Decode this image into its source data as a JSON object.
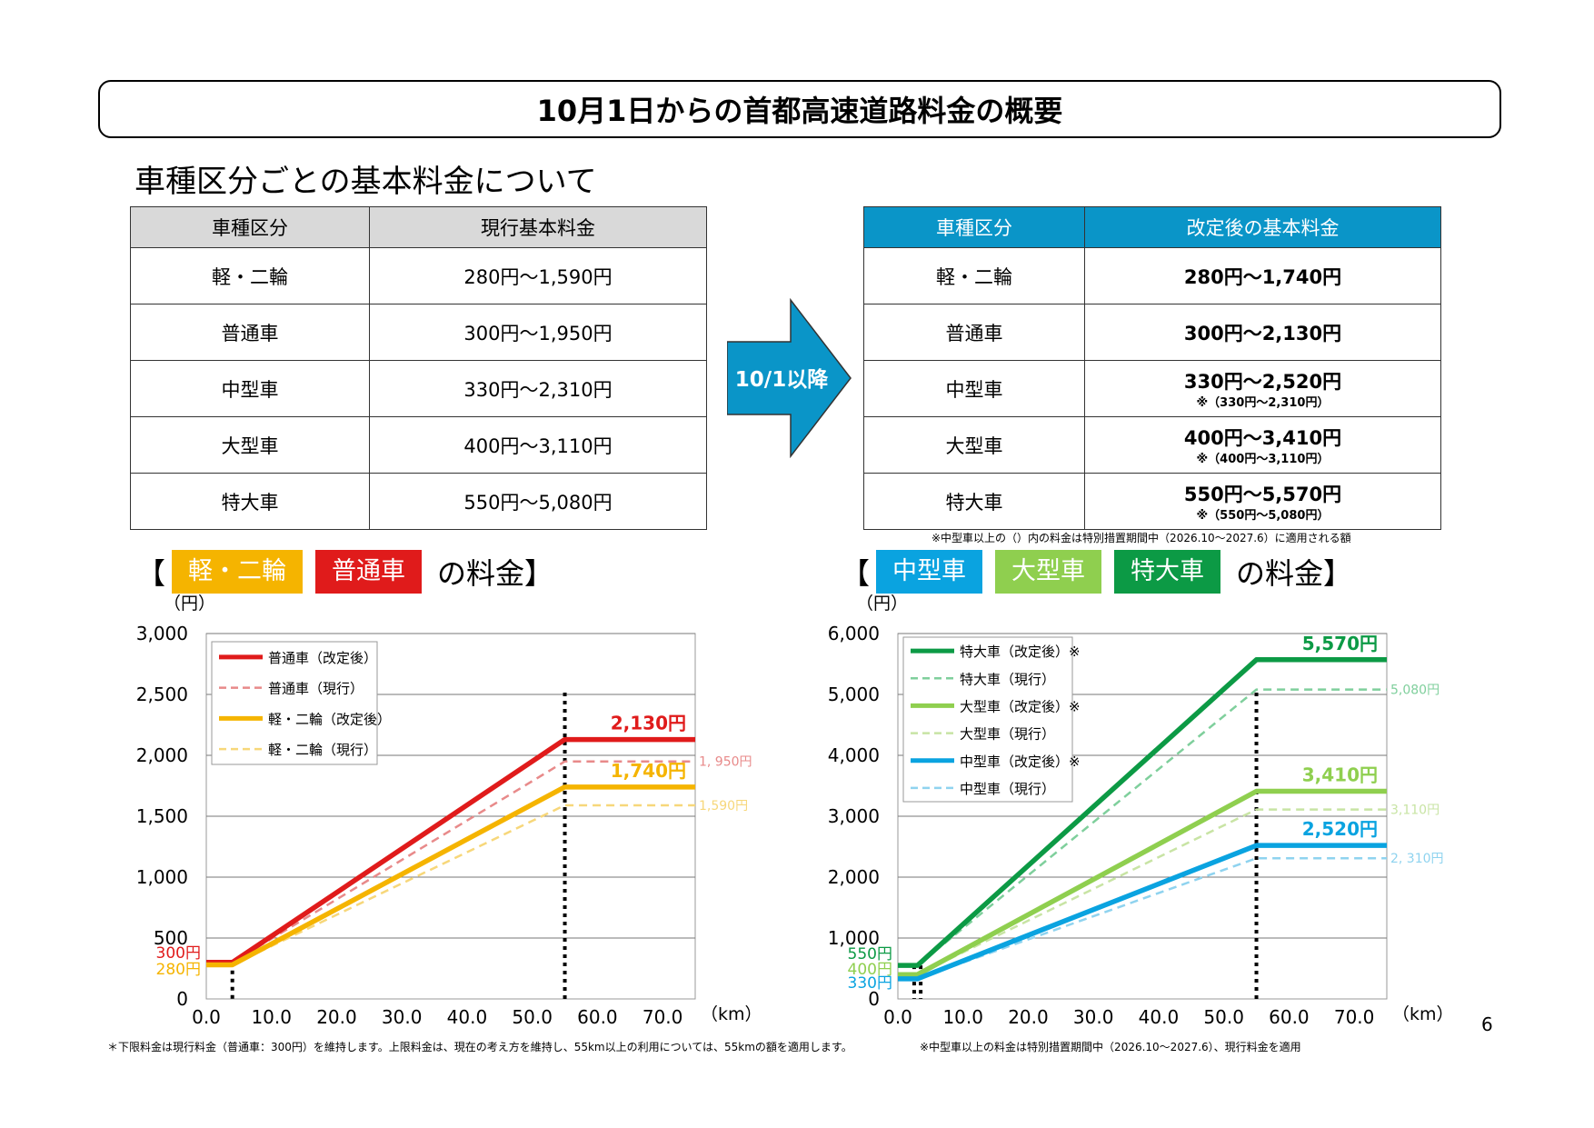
{
  "title": "10月1日からの首都高速道路料金の概要",
  "subtitle": "車種区分ごとの基本料金について",
  "table_current": {
    "headers": [
      "車種区分",
      "現行基本料金"
    ],
    "rows": [
      [
        "軽・二輪",
        "280円～1,590円"
      ],
      [
        "普通車",
        "300円～1,950円"
      ],
      [
        "中型車",
        "330円～2,310円"
      ],
      [
        "大型車",
        "400円～3,110円"
      ],
      [
        "特大車",
        "550円～5,080円"
      ]
    ]
  },
  "arrow_label": "10/1以降",
  "table_revised": {
    "headers": [
      "車種区分",
      "改定後の基本料金"
    ],
    "rows": [
      {
        "type": "軽・二輪",
        "fee": "280円～1,740円",
        "sub": ""
      },
      {
        "type": "普通車",
        "fee": "300円～2,130円",
        "sub": ""
      },
      {
        "type": "中型車",
        "fee": "330円～2,520円",
        "sub": "※（330円～2,310円）"
      },
      {
        "type": "大型車",
        "fee": "400円～3,410円",
        "sub": "※（400円～3,110円）"
      },
      {
        "type": "特大車",
        "fee": "550円～5,570円",
        "sub": "※（550円～5,080円）"
      }
    ],
    "note": "※中型車以上の（）内の料金は特別措置期間中（2026.10～2027.6）に適用される額"
  },
  "legend_left": {
    "open": "【",
    "chips": [
      {
        "label": "軽・二輪",
        "color": "#f5b400"
      },
      {
        "label": "普通車",
        "color": "#e01b1b"
      }
    ],
    "suffix": "の料金】"
  },
  "legend_right": {
    "open": "【",
    "chips": [
      {
        "label": "中型車",
        "color": "#0aa3e0"
      },
      {
        "label": "大型車",
        "color": "#8fcf4f"
      },
      {
        "label": "特大車",
        "color": "#0c9a45"
      }
    ],
    "suffix": "の料金】"
  },
  "chart_data": [
    {
      "type": "line",
      "ylabel": "（円）",
      "xlabel": "（km）",
      "ylim": [
        0,
        3000
      ],
      "xlim": [
        0,
        75
      ],
      "yticks": [
        "0",
        "500",
        "1,000",
        "1,500",
        "2,000",
        "2,500",
        "3,000"
      ],
      "xticks": [
        "0.0",
        "10.0",
        "20.0",
        "30.0",
        "40.0",
        "50.0",
        "60.0",
        "70.0"
      ],
      "grid": true,
      "legend": "top-left",
      "vlines": [
        4,
        55
      ],
      "series": [
        {
          "name": "普通車（改定後）",
          "color": "#e01b1b",
          "dashed": false,
          "x": [
            0,
            4,
            55,
            75
          ],
          "y": [
            300,
            300,
            2130,
            2130
          ],
          "end_label": "2,130円"
        },
        {
          "name": "普通車（現行）",
          "color": "#e88a8a",
          "dashed": true,
          "x": [
            0,
            4,
            55,
            75
          ],
          "y": [
            300,
            300,
            1950,
            1950
          ],
          "end_label": "1, 950円"
        },
        {
          "name": "軽・二輪（改定後）",
          "color": "#f5b400",
          "dashed": false,
          "x": [
            0,
            4,
            55,
            75
          ],
          "y": [
            280,
            280,
            1740,
            1740
          ],
          "end_label": "1,740円"
        },
        {
          "name": "軽・二輪（現行）",
          "color": "#f7d77a",
          "dashed": true,
          "x": [
            0,
            4,
            55,
            75
          ],
          "y": [
            280,
            280,
            1590,
            1590
          ],
          "end_label": "1,590円"
        }
      ],
      "start_labels": [
        {
          "text": "300円",
          "color": "#e01b1b"
        },
        {
          "text": "280円",
          "color": "#f5b400"
        }
      ]
    },
    {
      "type": "line",
      "ylabel": "（円）",
      "xlabel": "（km）",
      "ylim": [
        0,
        6000
      ],
      "xlim": [
        0,
        75
      ],
      "yticks": [
        "0",
        "1,000",
        "2,000",
        "3,000",
        "4,000",
        "5,000",
        "6,000"
      ],
      "xticks": [
        "0.0",
        "10.0",
        "20.0",
        "30.0",
        "40.0",
        "50.0",
        "60.0",
        "70.0"
      ],
      "grid": true,
      "legend": "top-left",
      "vlines": [
        2.5,
        3.5,
        55
      ],
      "series": [
        {
          "name": "特大車（改定後）※",
          "color": "#0c9a45",
          "dashed": false,
          "x": [
            0,
            3,
            55,
            75
          ],
          "y": [
            550,
            550,
            5570,
            5570
          ],
          "end_label": "5,570円"
        },
        {
          "name": "特大車（現行）",
          "color": "#7fcf9c",
          "dashed": true,
          "x": [
            0,
            3,
            55,
            75
          ],
          "y": [
            550,
            550,
            5080,
            5080
          ],
          "end_label": "5,080円"
        },
        {
          "name": "大型車（改定後）※",
          "color": "#8fcf4f",
          "dashed": false,
          "x": [
            0,
            3,
            55,
            75
          ],
          "y": [
            400,
            400,
            3410,
            3410
          ],
          "end_label": "3,410円"
        },
        {
          "name": "大型車（現行）",
          "color": "#c8e4a4",
          "dashed": true,
          "x": [
            0,
            3,
            55,
            75
          ],
          "y": [
            400,
            400,
            3110,
            3110
          ],
          "end_label": "3,110円"
        },
        {
          "name": "中型車（改定後）※",
          "color": "#0aa3e0",
          "dashed": false,
          "x": [
            0,
            3,
            55,
            75
          ],
          "y": [
            330,
            330,
            2520,
            2520
          ],
          "end_label": "2,520円"
        },
        {
          "name": "中型車（現行）",
          "color": "#8fd3ef",
          "dashed": true,
          "x": [
            0,
            3,
            55,
            75
          ],
          "y": [
            330,
            330,
            2310,
            2310
          ],
          "end_label": "2, 310円"
        }
      ],
      "start_labels": [
        {
          "text": "550円",
          "color": "#0c9a45"
        },
        {
          "text": "400円",
          "color": "#8fcf4f"
        },
        {
          "text": "330円",
          "color": "#0aa3e0"
        }
      ]
    }
  ],
  "footnote_left": "＊下限料金は現行料金（普通車：300円）を維持します。上限料金は、現在の考え方を維持し、55km以上の利用については、55kmの額を適用します。",
  "footnote_right": "※中型車以上の料金は特別措置期間中（2026.10～2027.6）、現行料金を適用",
  "page_number": "6"
}
